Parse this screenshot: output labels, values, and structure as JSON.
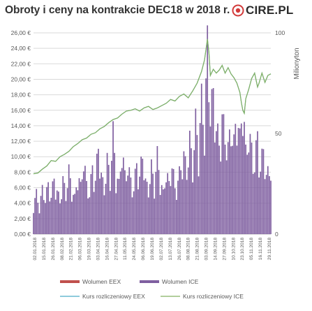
{
  "header": {
    "title": "Obroty i ceny na kontrakcie DEC18 w 2018 r.",
    "logo_text": "CIRE.PL"
  },
  "colors": {
    "eex_volume": "#c0504d",
    "ice_volume": "#7f5fa0",
    "eex_price": "#4bacc6",
    "ice_price": "#84b061",
    "grid": "#d9d9d9",
    "axis_text": "#595959"
  },
  "chart_data": {
    "type": "bar+line",
    "y_left": {
      "ticks": [
        "0,00 €",
        "2,00 €",
        "4,00 €",
        "6,00 €",
        "8,00 €",
        "10,00 €",
        "12,00 €",
        "14,00 €",
        "16,00 €",
        "18,00 €",
        "20,00 €",
        "22,00 €",
        "24,00 €",
        "26,00 €"
      ],
      "min": 0,
      "max": 26
    },
    "y_right": {
      "label": "Milionyton",
      "ticks": [
        "0",
        "50",
        "100"
      ],
      "min": 0,
      "max": 100
    },
    "grid": true,
    "x_labels": [
      "02.01.2018",
      "15.01.2018",
      "26.01.2018",
      "08.02.2018",
      "21.02.2018",
      "06.03.2018",
      "19.03.2018",
      "03.04.2018",
      "16.04.2018",
      "27.04.2018",
      "11.05.2018",
      "24.05.2018",
      "06.06.2018",
      "19.06.2018",
      "02.07.2018",
      "13.07.2018",
      "26.07.2018",
      "08.08.2018",
      "21.08.2018",
      "03.09.2018",
      "14.09.2018",
      "27.09.2018",
      "10.10.2018",
      "23.10.2018",
      "05.11.2018",
      "16.11.2018",
      "29.11.2018"
    ],
    "ice_price_points": [
      [
        0,
        7.8
      ],
      [
        3,
        7.9
      ],
      [
        6,
        8.4
      ],
      [
        9,
        8.8
      ],
      [
        12,
        9.5
      ],
      [
        15,
        9.4
      ],
      [
        18,
        10.0
      ],
      [
        21,
        10.3
      ],
      [
        24,
        10.7
      ],
      [
        27,
        11.3
      ],
      [
        30,
        11.7
      ],
      [
        33,
        12.2
      ],
      [
        36,
        12.4
      ],
      [
        39,
        12.9
      ],
      [
        42,
        13.1
      ],
      [
        45,
        13.6
      ],
      [
        48,
        13.9
      ],
      [
        51,
        14.4
      ],
      [
        54,
        14.8
      ],
      [
        57,
        15.0
      ],
      [
        60,
        15.5
      ],
      [
        63,
        15.9
      ],
      [
        66,
        16.0
      ],
      [
        69,
        16.2
      ],
      [
        72,
        15.9
      ],
      [
        75,
        16.3
      ],
      [
        78,
        16.5
      ],
      [
        81,
        16.1
      ],
      [
        84,
        16.3
      ],
      [
        87,
        16.6
      ],
      [
        90,
        16.9
      ],
      [
        93,
        17.4
      ],
      [
        96,
        17.2
      ],
      [
        99,
        17.8
      ],
      [
        102,
        18.1
      ],
      [
        105,
        17.6
      ],
      [
        108,
        18.5
      ],
      [
        111,
        19.5
      ],
      [
        114,
        21.0
      ],
      [
        116,
        22.5
      ],
      [
        118,
        25.2
      ],
      [
        119,
        23.5
      ],
      [
        120,
        20.5
      ],
      [
        122,
        21.3
      ],
      [
        124,
        20.8
      ],
      [
        126,
        21.2
      ],
      [
        128,
        21.8
      ],
      [
        130,
        20.8
      ],
      [
        132,
        21.5
      ],
      [
        134,
        20.7
      ],
      [
        136,
        20.2
      ],
      [
        138,
        19.5
      ],
      [
        140,
        18.3
      ],
      [
        141,
        17.0
      ],
      [
        142,
        16.0
      ],
      [
        143,
        15.6
      ],
      [
        144,
        17.5
      ],
      [
        146,
        18.7
      ],
      [
        148,
        20.1
      ],
      [
        150,
        20.8
      ],
      [
        152,
        19.0
      ],
      [
        153,
        19.5
      ],
      [
        155,
        20.8
      ],
      [
        157,
        19.6
      ],
      [
        159,
        20.5
      ],
      [
        161,
        20.7
      ]
    ],
    "eex_price_points": [
      [
        0,
        7.8
      ],
      [
        3,
        7.9
      ],
      [
        6,
        8.4
      ],
      [
        9,
        8.8
      ],
      [
        12,
        9.5
      ],
      [
        15,
        9.4
      ],
      [
        18,
        10.0
      ],
      [
        21,
        10.3
      ],
      [
        24,
        10.7
      ],
      [
        27,
        11.3
      ],
      [
        30,
        11.7
      ],
      [
        33,
        12.2
      ],
      [
        36,
        12.4
      ],
      [
        39,
        12.9
      ],
      [
        42,
        13.1
      ],
      [
        45,
        13.6
      ],
      [
        48,
        13.9
      ],
      [
        51,
        14.4
      ],
      [
        54,
        14.8
      ],
      [
        57,
        15.0
      ],
      [
        60,
        15.5
      ],
      [
        63,
        15.9
      ],
      [
        66,
        16.0
      ],
      [
        69,
        16.2
      ],
      [
        72,
        15.9
      ],
      [
        75,
        16.3
      ],
      [
        78,
        16.5
      ],
      [
        81,
        16.1
      ],
      [
        84,
        16.3
      ],
      [
        87,
        16.6
      ],
      [
        90,
        16.9
      ],
      [
        93,
        17.4
      ],
      [
        96,
        17.2
      ],
      [
        99,
        17.8
      ],
      [
        102,
        18.1
      ],
      [
        105,
        17.6
      ],
      [
        108,
        18.5
      ],
      [
        111,
        19.5
      ],
      [
        114,
        21.0
      ],
      [
        116,
        22.5
      ],
      [
        118,
        25.2
      ],
      [
        119,
        23.5
      ],
      [
        120,
        20.5
      ],
      [
        122,
        21.3
      ],
      [
        124,
        20.8
      ],
      [
        126,
        21.2
      ],
      [
        128,
        21.8
      ],
      [
        130,
        20.8
      ],
      [
        132,
        21.5
      ],
      [
        134,
        20.7
      ],
      [
        136,
        20.2
      ],
      [
        138,
        19.5
      ],
      [
        140,
        18.3
      ],
      [
        141,
        17.0
      ],
      [
        142,
        16.0
      ],
      [
        143,
        15.6
      ],
      [
        144,
        17.5
      ],
      [
        146,
        18.7
      ],
      [
        148,
        20.1
      ],
      [
        150,
        20.8
      ],
      [
        152,
        19.0
      ],
      [
        153,
        19.5
      ],
      [
        155,
        20.8
      ],
      [
        157,
        19.6
      ],
      [
        159,
        20.5
      ],
      [
        161,
        20.7
      ]
    ],
    "ice_volume_samples": [
      [
        0,
        14
      ],
      [
        2,
        18
      ],
      [
        4,
        12
      ],
      [
        6,
        20
      ],
      [
        8,
        16
      ],
      [
        10,
        22
      ],
      [
        12,
        17
      ],
      [
        14,
        25
      ],
      [
        16,
        19
      ],
      [
        18,
        15
      ],
      [
        20,
        24
      ],
      [
        22,
        18
      ],
      [
        24,
        28
      ],
      [
        26,
        20
      ],
      [
        28,
        16
      ],
      [
        30,
        27
      ],
      [
        32,
        21
      ],
      [
        34,
        34
      ],
      [
        36,
        22
      ],
      [
        38,
        18
      ],
      [
        40,
        30
      ],
      [
        42,
        24
      ],
      [
        44,
        40
      ],
      [
        46,
        26
      ],
      [
        48,
        20
      ],
      [
        50,
        33
      ],
      [
        52,
        25
      ],
      [
        54,
        45
      ],
      [
        56,
        27
      ],
      [
        58,
        22
      ],
      [
        60,
        38
      ],
      [
        62,
        26
      ],
      [
        64,
        30
      ],
      [
        66,
        24
      ],
      [
        68,
        20
      ],
      [
        70,
        32
      ],
      [
        72,
        25
      ],
      [
        74,
        37
      ],
      [
        76,
        23
      ],
      [
        78,
        20
      ],
      [
        80,
        30
      ],
      [
        82,
        22
      ],
      [
        84,
        35
      ],
      [
        86,
        24
      ],
      [
        88,
        18
      ],
      [
        90,
        28
      ],
      [
        92,
        22
      ],
      [
        94,
        32
      ],
      [
        96,
        20
      ],
      [
        98,
        24
      ],
      [
        100,
        30
      ],
      [
        102,
        35
      ],
      [
        104,
        28
      ],
      [
        106,
        42
      ],
      [
        108,
        30
      ],
      [
        110,
        50
      ],
      [
        112,
        38
      ],
      [
        114,
        60
      ],
      [
        116,
        45
      ],
      [
        118,
        85
      ],
      [
        119,
        70
      ],
      [
        120,
        55
      ],
      [
        122,
        62
      ],
      [
        124,
        48
      ],
      [
        126,
        40
      ],
      [
        128,
        52
      ],
      [
        130,
        44
      ],
      [
        132,
        38
      ],
      [
        134,
        48
      ],
      [
        136,
        40
      ],
      [
        138,
        55
      ],
      [
        140,
        42
      ],
      [
        142,
        60
      ],
      [
        144,
        36
      ],
      [
        146,
        44
      ],
      [
        148,
        38
      ],
      [
        150,
        30
      ],
      [
        152,
        45
      ],
      [
        154,
        28
      ],
      [
        156,
        40
      ],
      [
        158,
        25
      ],
      [
        160,
        30
      ],
      [
        161,
        28
      ]
    ],
    "eex_volume_samples": [],
    "legend": [
      {
        "name": "Wolumen EEX",
        "kind": "bar"
      },
      {
        "name": "Wolumen ICE",
        "kind": "bar"
      },
      {
        "name": "Kurs rozliczeniowy EEX",
        "kind": "line"
      },
      {
        "name": "Kurs rozliczeniowy ICE",
        "kind": "line"
      }
    ],
    "legend_position": "bottom"
  }
}
